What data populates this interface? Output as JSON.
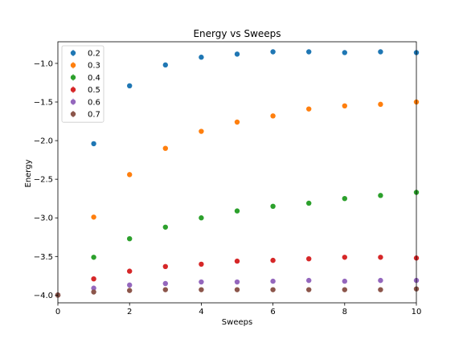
{
  "chart_data": {
    "type": "scatter",
    "title": "Energy vs Sweeps",
    "xlabel": "Sweeps",
    "ylabel": "Energy",
    "xlim": [
      0,
      10
    ],
    "ylim": [
      -4.1,
      -0.72
    ],
    "xticks": [
      0,
      2,
      4,
      6,
      8,
      10
    ],
    "yticks": [
      -4.0,
      -3.5,
      -3.0,
      -2.5,
      -2.0,
      -1.5,
      -1.0
    ],
    "ytick_labels": [
      "−4.0",
      "−3.5",
      "−3.0",
      "−2.5",
      "−2.0",
      "−1.5",
      "−1.0"
    ],
    "grid": false,
    "legend_position": "top-left",
    "x": [
      0,
      1,
      2,
      3,
      4,
      5,
      6,
      7,
      8,
      9,
      10
    ],
    "series": [
      {
        "name": "0.2",
        "color": "#1f77b4",
        "values": [
          -4.0,
          -2.04,
          -1.29,
          -1.02,
          -0.92,
          -0.88,
          -0.85,
          -0.85,
          -0.86,
          -0.85,
          -0.86
        ]
      },
      {
        "name": "0.3",
        "color": "#ff7f0e",
        "values": [
          -4.0,
          -2.99,
          -2.44,
          -2.1,
          -1.88,
          -1.76,
          -1.68,
          -1.59,
          -1.55,
          -1.53,
          -1.5
        ]
      },
      {
        "name": "0.4",
        "color": "#2ca02c",
        "values": [
          -4.0,
          -3.51,
          -3.27,
          -3.12,
          -3.0,
          -2.91,
          -2.85,
          -2.81,
          -2.75,
          -2.71,
          -2.67
        ]
      },
      {
        "name": "0.5",
        "color": "#d62728",
        "values": [
          -4.0,
          -3.79,
          -3.69,
          -3.63,
          -3.6,
          -3.56,
          -3.55,
          -3.53,
          -3.51,
          -3.51,
          -3.52
        ]
      },
      {
        "name": "0.6",
        "color": "#9467bd",
        "values": [
          -4.0,
          -3.91,
          -3.87,
          -3.85,
          -3.83,
          -3.83,
          -3.82,
          -3.81,
          -3.82,
          -3.81,
          -3.81
        ]
      },
      {
        "name": "0.7",
        "color": "#8c564b",
        "values": [
          -4.0,
          -3.96,
          -3.94,
          -3.93,
          -3.93,
          -3.93,
          -3.93,
          -3.93,
          -3.93,
          -3.93,
          -3.92
        ]
      }
    ]
  }
}
